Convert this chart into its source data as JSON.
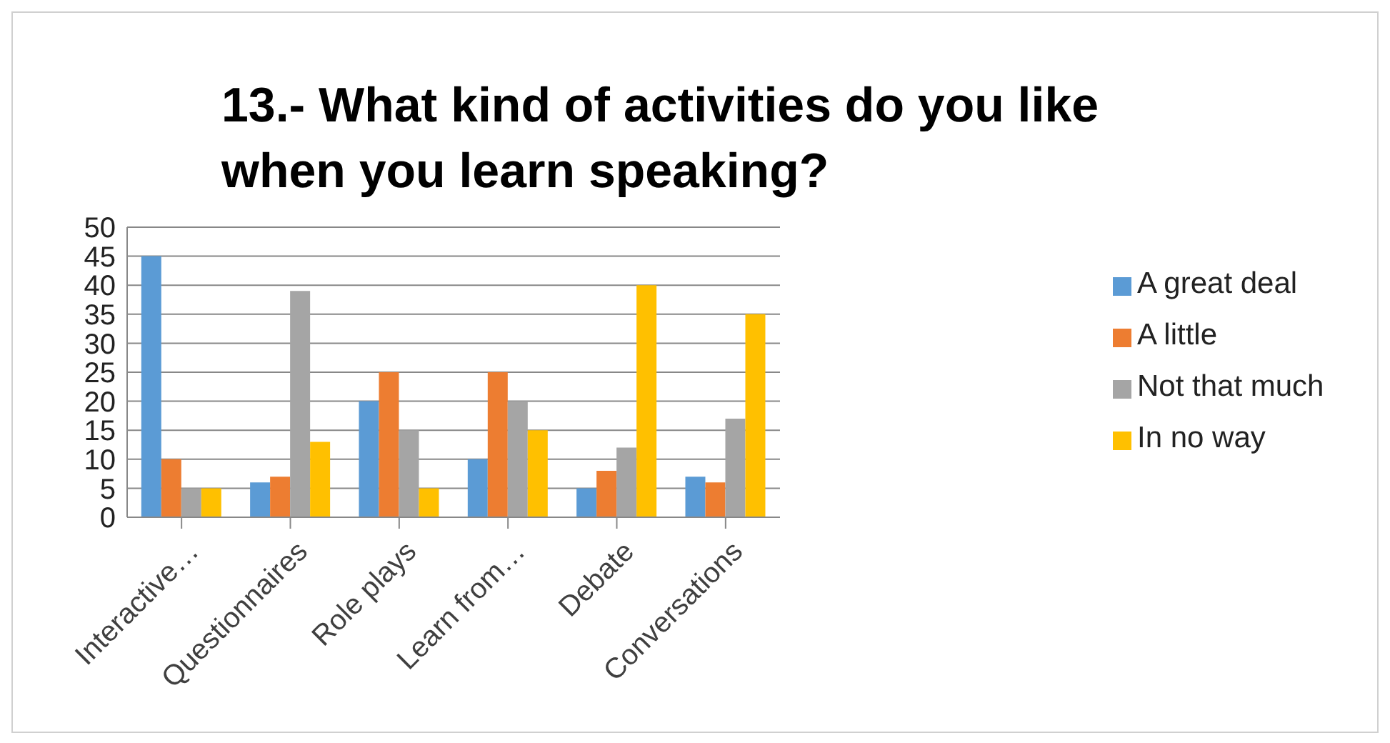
{
  "chart_data": {
    "type": "bar",
    "title": "13.- What kind of activities do you like when you learn speaking?",
    "categories": [
      "Interactive…",
      "Questionnaires",
      "Role plays",
      "Learn from…",
      "Debate",
      "Conversations"
    ],
    "series": [
      {
        "name": "A great deal",
        "color": "#5b9bd5",
        "values": [
          45,
          6,
          20,
          10,
          5,
          7
        ]
      },
      {
        "name": "A little",
        "color": "#ed7d31",
        "values": [
          10,
          7,
          25,
          25,
          8,
          6
        ]
      },
      {
        "name": "Not that much",
        "color": "#a5a5a5",
        "values": [
          5,
          39,
          15,
          20,
          12,
          17
        ]
      },
      {
        "name": "In no way",
        "color": "#ffc000",
        "values": [
          5,
          13,
          5,
          15,
          40,
          35
        ]
      }
    ],
    "ylim": [
      0,
      50
    ],
    "yticks": [
      0,
      5,
      10,
      15,
      20,
      25,
      30,
      35,
      40,
      45,
      50
    ],
    "grid": "y",
    "legend": "right"
  }
}
